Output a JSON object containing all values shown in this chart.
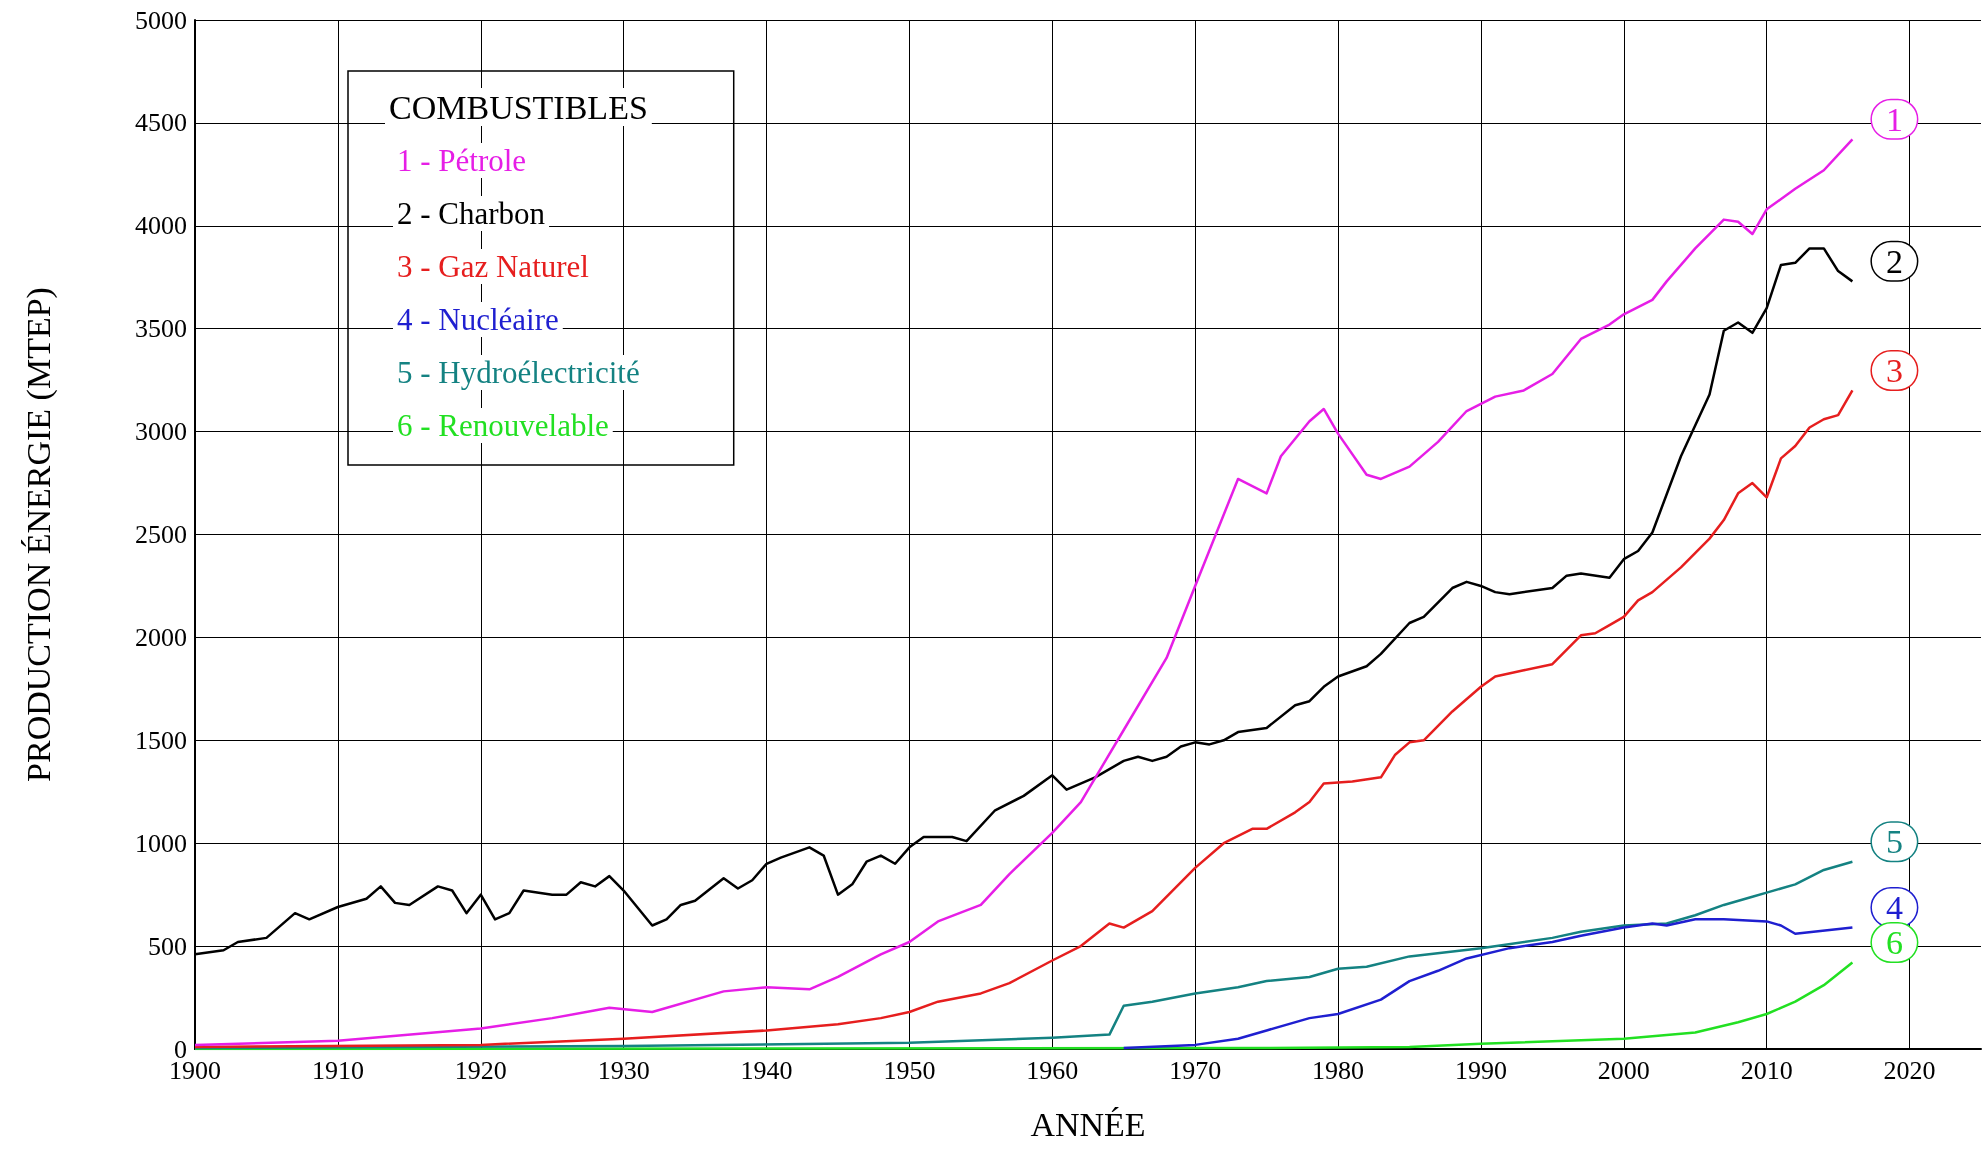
{
  "chart_data": {
    "type": "line",
    "xlabel": "ANNÉE",
    "ylabel": "PRODUCTION ÉNERGIE (MTEP)",
    "legend_title": "COMBUSTIBLES",
    "legend": "top left",
    "grid": true,
    "marker": "none",
    "line_style": "solid",
    "xlim": [
      1900,
      2025
    ],
    "xticks": [
      1900,
      1910,
      1920,
      1930,
      1940,
      1950,
      1960,
      1970,
      1980,
      1990,
      2000,
      2010,
      2020
    ],
    "ylim": [
      0,
      5000
    ],
    "yticks": [
      0,
      500,
      1000,
      1500,
      2000,
      2500,
      3000,
      3500,
      4000,
      4500,
      5000
    ],
    "series": [
      {
        "name": "1 - Pétrole",
        "color": "#e61ee6",
        "x": [
          1900,
          1910,
          1920,
          1925,
          1929,
          1932,
          1937,
          1940,
          1943,
          1945,
          1948,
          1950,
          1952,
          1955,
          1957,
          1960,
          1962,
          1965,
          1968,
          1970,
          1973,
          1975,
          1976,
          1978,
          1979,
          1980,
          1982,
          1983,
          1985,
          1987,
          1989,
          1991,
          1993,
          1995,
          1997,
          1999,
          2000,
          2002,
          2003,
          2005,
          2007,
          2008,
          2009,
          2010,
          2012,
          2014,
          2016
        ],
        "values": [
          20,
          40,
          100,
          150,
          200,
          180,
          280,
          300,
          290,
          350,
          460,
          520,
          620,
          700,
          850,
          1050,
          1200,
          1550,
          1900,
          2250,
          2770,
          2700,
          2880,
          3050,
          3110,
          2990,
          2790,
          2770,
          2830,
          2950,
          3100,
          3170,
          3200,
          3280,
          3450,
          3520,
          3570,
          3640,
          3730,
          3890,
          4030,
          4020,
          3960,
          4080,
          4180,
          4270,
          4420
        ]
      },
      {
        "name": "2 - Charbon",
        "color": "#000000",
        "x": [
          1900,
          1902,
          1903,
          1905,
          1907,
          1908,
          1910,
          1912,
          1913,
          1914,
          1915,
          1917,
          1918,
          1919,
          1920,
          1921,
          1922,
          1923,
          1925,
          1926,
          1927,
          1928,
          1929,
          1930,
          1932,
          1933,
          1934,
          1935,
          1937,
          1938,
          1939,
          1940,
          1941,
          1943,
          1944,
          1945,
          1946,
          1947,
          1948,
          1949,
          1950,
          1951,
          1953,
          1954,
          1956,
          1958,
          1960,
          1961,
          1963,
          1965,
          1966,
          1967,
          1968,
          1969,
          1970,
          1971,
          1972,
          1973,
          1975,
          1977,
          1978,
          1979,
          1980,
          1982,
          1983,
          1985,
          1986,
          1988,
          1989,
          1990,
          1991,
          1992,
          1995,
          1996,
          1997,
          1999,
          2000,
          2001,
          2002,
          2004,
          2006,
          2007,
          2008,
          2009,
          2010,
          2011,
          2012,
          2013,
          2014,
          2015,
          2016
        ],
        "values": [
          460,
          480,
          520,
          540,
          660,
          630,
          690,
          730,
          790,
          710,
          700,
          790,
          770,
          660,
          750,
          630,
          660,
          770,
          750,
          750,
          810,
          790,
          840,
          770,
          600,
          630,
          700,
          720,
          830,
          780,
          820,
          900,
          930,
          980,
          940,
          750,
          800,
          910,
          940,
          900,
          980,
          1030,
          1030,
          1010,
          1160,
          1230,
          1330,
          1260,
          1320,
          1400,
          1420,
          1400,
          1420,
          1470,
          1490,
          1480,
          1500,
          1540,
          1560,
          1670,
          1690,
          1760,
          1810,
          1860,
          1920,
          2070,
          2100,
          2240,
          2270,
          2250,
          2220,
          2210,
          2240,
          2300,
          2310,
          2290,
          2380,
          2420,
          2510,
          2880,
          3180,
          3490,
          3530,
          3480,
          3600,
          3810,
          3820,
          3890,
          3890,
          3780,
          3730
        ]
      },
      {
        "name": "3 - Gaz Naturel",
        "color": "#e61e1e",
        "x": [
          1900,
          1920,
          1930,
          1940,
          1945,
          1948,
          1950,
          1952,
          1955,
          1957,
          1960,
          1962,
          1964,
          1965,
          1967,
          1970,
          1972,
          1974,
          1975,
          1977,
          1978,
          1979,
          1981,
          1983,
          1984,
          1985,
          1986,
          1988,
          1990,
          1991,
          1993,
          1995,
          1997,
          1998,
          1999,
          2000,
          2001,
          2002,
          2004,
          2006,
          2007,
          2008,
          2009,
          2010,
          2011,
          2012,
          2013,
          2014,
          2015,
          2016
        ],
        "values": [
          10,
          20,
          50,
          90,
          120,
          150,
          180,
          230,
          270,
          320,
          430,
          500,
          610,
          590,
          670,
          880,
          1000,
          1070,
          1070,
          1150,
          1200,
          1290,
          1300,
          1320,
          1430,
          1490,
          1500,
          1640,
          1760,
          1810,
          1840,
          1870,
          2010,
          2020,
          2060,
          2100,
          2180,
          2220,
          2340,
          2480,
          2570,
          2700,
          2750,
          2680,
          2870,
          2930,
          3020,
          3060,
          3080,
          3200
        ]
      },
      {
        "name": "4 - Nucléaire",
        "color": "#1f1fd0",
        "x": [
          1965,
          1970,
          1973,
          1975,
          1978,
          1980,
          1983,
          1985,
          1987,
          1989,
          1992,
          1995,
          1997,
          2000,
          2002,
          2003,
          2005,
          2007,
          2010,
          2011,
          2012,
          2016
        ],
        "values": [
          5,
          20,
          50,
          90,
          150,
          170,
          240,
          330,
          380,
          440,
          490,
          520,
          550,
          590,
          610,
          600,
          630,
          630,
          620,
          600,
          560,
          590
        ]
      },
      {
        "name": "5 - Hydroélectricité",
        "color": "#148282",
        "x": [
          1900,
          1930,
          1950,
          1960,
          1964,
          1965,
          1967,
          1970,
          1973,
          1975,
          1978,
          1980,
          1982,
          1985,
          1990,
          1995,
          1997,
          2000,
          2003,
          2005,
          2007,
          2009,
          2010,
          2012,
          2014,
          2016
        ],
        "values": [
          5,
          15,
          30,
          55,
          70,
          210,
          230,
          270,
          300,
          330,
          350,
          390,
          400,
          450,
          490,
          540,
          570,
          600,
          610,
          650,
          700,
          740,
          760,
          800,
          870,
          910
        ]
      },
      {
        "name": "6 - Renouvelable",
        "color": "#22e022",
        "x": [
          1900,
          1975,
          1985,
          1990,
          2000,
          2005,
          2008,
          2010,
          2012,
          2014,
          2016
        ],
        "values": [
          0,
          5,
          10,
          25,
          50,
          80,
          130,
          170,
          230,
          310,
          420
        ]
      }
    ],
    "annotations": [
      "1",
      "2",
      "3",
      "4",
      "5",
      "6"
    ]
  }
}
